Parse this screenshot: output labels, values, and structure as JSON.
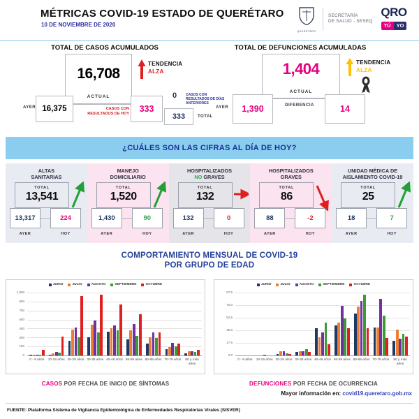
{
  "header": {
    "title": "MÉTRICAS COVID-19 ESTADO DE QUERÉTARO",
    "date": "10 DE NOVIEMBRE DE 2020",
    "logos": {
      "shield_caption": "QUERÉTARO",
      "secretaria_line1": "SECRETARÍA",
      "secretaria_line2": "DE SALUD - SESEQ",
      "qro": "QRO",
      "tu": "TÚ",
      "yo": "YO"
    }
  },
  "totals": {
    "casos": {
      "title": "TOTAL DE CASOS ACUMULADOS",
      "actual_value": "16,708",
      "actual_label": "ACTUAL",
      "ayer_label": "AYER",
      "ayer_value": "16,375",
      "hoy_label": "CASOS CON RESULTADOS DE HOY",
      "hoy_value": "333",
      "anteriores_value": "0",
      "anteriores_label": "CASOS CON RESULTADOS DE DÍAS ANTERIORES",
      "total_value": "333",
      "total_label": "TOTAL",
      "tendencia_label": "TENDENCIA",
      "alza_label": "ALZA"
    },
    "defunciones": {
      "title": "TOTAL DE DEFUNCIONES ACUMULADAS",
      "actual_value": "1,404",
      "actual_label": "ACTUAL",
      "ayer_label": "AYER",
      "ayer_value": "1,390",
      "diferencia_label": "DIFERENCIA",
      "diferencia_value": "14",
      "tendencia_label": "TENDENCIA",
      "alza_label": "ALZA"
    }
  },
  "banner": {
    "text": "¿CUÁLES SON LAS CIFRAS AL DÍA DE HOY?"
  },
  "cards": {
    "total_label": "TOTAL",
    "ayer_label": "AYER",
    "hoy_label": "HOY",
    "items": [
      {
        "title_lines": [
          "ALTAS",
          "SANITARIAS"
        ],
        "total": "13,541",
        "ayer": "13,317",
        "hoy": "224",
        "hoy_color": "#E5007E",
        "bg": "#E9EBF2",
        "arrow": "up-green"
      },
      {
        "title_lines": [
          "MANEJO",
          "DOMICILIARIO"
        ],
        "total": "1,520",
        "ayer": "1,430",
        "hoy": "90",
        "hoy_color": "#2FA84F",
        "bg": "#FBE3EF",
        "arrow": "up-green"
      },
      {
        "title_lines": [
          "HOSPITALIZADOS",
          "NO GRAVES"
        ],
        "accent_word": "NO",
        "accent_color": "#2FA84F",
        "total": "132",
        "ayer": "132",
        "hoy": "0",
        "hoy_color": "#E02020",
        "bg": "#E5E4E8",
        "arrow": "right-red"
      },
      {
        "title_lines": [
          "HOSPITALIZADOS",
          "GRAVES"
        ],
        "total": "86",
        "ayer": "88",
        "hoy": "-2",
        "hoy_color": "#E02020",
        "bg": "#FBE3EF",
        "arrow": "down-red"
      },
      {
        "title_lines": [
          "UNIDAD MÉDICA DE",
          "AISLAMIENTO COVID-19"
        ],
        "total": "25",
        "ayer": "18",
        "hoy": "7",
        "hoy_color": "#2FA84F",
        "bg": "#E9EBF2",
        "arrow": "up-green"
      }
    ]
  },
  "charts_section": {
    "title_line1": "COMPORTAMIENTO MENSUAL DE COVID-19",
    "title_line2": "POR GRUPO DE EDAD",
    "captions": {
      "left_accent": "CASOS",
      "left_rest": " POR FECHA DE INICIO DE SÍNTOMAS",
      "right_accent": "DEFUNCIONES",
      "right_rest": " POR FECHA DE OCURRENCIA"
    }
  },
  "chart_data": [
    {
      "type": "bar",
      "title": "CASOS POR FECHA DE INICIO DE SÍNTOMAS",
      "categories": [
        "0 - 9 años",
        "10-19 años",
        "20-29 años",
        "30-39 años",
        "40-49 años",
        "50-59 años",
        "60-69 años",
        "70-79 años",
        "80 y más años"
      ],
      "series": [
        {
          "name": "JUNIO",
          "color": "#1F3864",
          "values": [
            8,
            12,
            245,
            300,
            395,
            270,
            200,
            100,
            40
          ]
        },
        {
          "name": "JULIO",
          "color": "#ED7D31",
          "values": [
            18,
            30,
            435,
            510,
            450,
            415,
            300,
            140,
            75
          ]
        },
        {
          "name": "AGOSTO",
          "color": "#7030A0",
          "values": [
            18,
            60,
            470,
            585,
            500,
            530,
            385,
            210,
            65
          ]
        },
        {
          "name": "SEPTIEMBRE",
          "color": "#3D9B35",
          "values": [
            12,
            45,
            305,
            390,
            415,
            330,
            295,
            150,
            55
          ]
        },
        {
          "name": "OCTUBRE",
          "color": "#E02020",
          "values": [
            95,
            310,
            990,
            1020,
            855,
            690,
            390,
            195,
            90
          ]
        }
      ],
      "ylim": [
        0,
        1050
      ],
      "ytick_values": [
        0,
        150,
        300,
        450,
        600,
        750,
        900,
        1050
      ],
      "ytick_labels": [
        "0",
        "150",
        "300",
        "450",
        "600",
        "750",
        "900",
        "1,050"
      ],
      "legend_position": "top",
      "grid": true,
      "xlabel": "",
      "ylabel": ""
    },
    {
      "type": "bar",
      "title": "DEFUNCIONES POR FECHA DE OCURRENCIA",
      "categories": [
        "0 - 9 años",
        "10-19 años",
        "20-29 años",
        "30-39 años",
        "40-49 años",
        "50-59 años",
        "60-69 años",
        "70-79 años",
        "80 y más años"
      ],
      "series": [
        {
          "name": "JUNIO",
          "color": "#1F3864",
          "values": [
            0,
            0,
            2,
            5,
            38,
            42,
            58,
            39,
            20
          ]
        },
        {
          "name": "JULIO",
          "color": "#ED7D31",
          "values": [
            0,
            0,
            6,
            6,
            25,
            46,
            68,
            39,
            36
          ]
        },
        {
          "name": "AGOSTO",
          "color": "#7030A0",
          "values": [
            0,
            1,
            6,
            6,
            32,
            69,
            76,
            79,
            23
          ]
        },
        {
          "name": "SEPTIEMBRE",
          "color": "#3D9B35",
          "values": [
            0,
            0,
            3,
            9,
            46,
            52,
            85,
            55,
            30
          ]
        },
        {
          "name": "OCTUBRE",
          "color": "#E02020",
          "values": [
            0,
            0,
            2,
            5,
            16,
            38,
            38,
            24,
            26
          ]
        }
      ],
      "ylim": [
        0,
        87.5
      ],
      "ytick_values": [
        0,
        17.5,
        35,
        52.5,
        70,
        87.5
      ],
      "ytick_labels": [
        "0.0",
        "17.5",
        "35.0",
        "52.5",
        "70.0",
        "87.5"
      ],
      "legend_position": "top",
      "grid": true,
      "xlabel": "",
      "ylabel": ""
    }
  ],
  "footer": {
    "info_label": "Mayor información en:",
    "info_link": "covid19.queretaro.gob.mx",
    "fuente": "FUENTE: Plataforma Sistema  de Vigilancia Epidemiológica de Enfermedades Respiratorias Virales (SISVER)"
  },
  "colors": {
    "magenta": "#E5007E",
    "navy": "#1F3864",
    "red": "#E02020",
    "green": "#2FA84F",
    "yellow": "#FFC000",
    "banner_blue": "#8BCDEF",
    "title_blue": "#23409A"
  }
}
